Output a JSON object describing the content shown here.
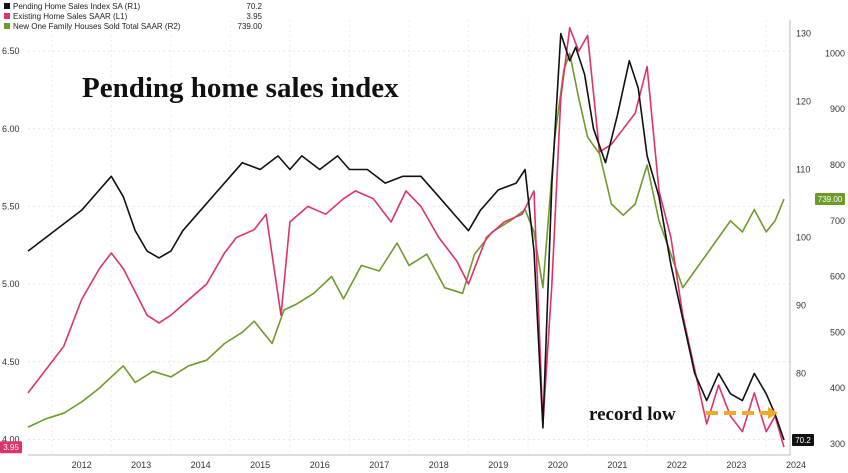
{
  "chart_data": {
    "type": "line",
    "title": "Pending home sales index",
    "annotation": "record low",
    "x_ticks": [
      "2012",
      "2013",
      "2014",
      "2015",
      "2016",
      "2017",
      "2018",
      "2019",
      "2020",
      "2021",
      "2022",
      "2023",
      "2024"
    ],
    "left_axis": {
      "ticks": [
        "6.50",
        "6.00",
        "5.50",
        "5.00",
        "4.50",
        "4.00"
      ],
      "ylim": [
        3.9,
        6.7
      ]
    },
    "right1_axis": {
      "ticks": [
        "130",
        "120",
        "110",
        "100",
        "90",
        "80"
      ],
      "ylim": [
        68,
        132
      ]
    },
    "right2_axis": {
      "ticks": [
        "1000",
        "900",
        "800",
        "700",
        "600",
        "500",
        "400",
        "300"
      ],
      "ylim": [
        280,
        1060
      ]
    },
    "xlim": [
      2011.6,
      2024.4
    ],
    "series": [
      {
        "name": "Pending Home Sales Index SA (R1)",
        "last": "70.2",
        "axis": "right1",
        "color": "#111111",
        "points": [
          [
            2011.6,
            98
          ],
          [
            2011.9,
            100
          ],
          [
            2012.2,
            102
          ],
          [
            2012.5,
            104
          ],
          [
            2012.8,
            107
          ],
          [
            2013.0,
            109
          ],
          [
            2013.2,
            106
          ],
          [
            2013.4,
            101
          ],
          [
            2013.6,
            98
          ],
          [
            2013.8,
            97
          ],
          [
            2014.0,
            98
          ],
          [
            2014.2,
            101
          ],
          [
            2014.5,
            104
          ],
          [
            2014.8,
            107
          ],
          [
            2015.0,
            109
          ],
          [
            2015.2,
            111
          ],
          [
            2015.5,
            110
          ],
          [
            2015.8,
            112
          ],
          [
            2016.0,
            110
          ],
          [
            2016.2,
            112
          ],
          [
            2016.5,
            110
          ],
          [
            2016.8,
            112
          ],
          [
            2017.0,
            110
          ],
          [
            2017.3,
            110
          ],
          [
            2017.6,
            108
          ],
          [
            2017.9,
            109
          ],
          [
            2018.2,
            109
          ],
          [
            2018.5,
            106
          ],
          [
            2018.8,
            103
          ],
          [
            2019.0,
            101
          ],
          [
            2019.2,
            104
          ],
          [
            2019.5,
            107
          ],
          [
            2019.8,
            108
          ],
          [
            2019.95,
            110
          ],
          [
            2020.1,
            98
          ],
          [
            2020.25,
            72
          ],
          [
            2020.4,
            108
          ],
          [
            2020.55,
            130
          ],
          [
            2020.7,
            126
          ],
          [
            2020.8,
            128
          ],
          [
            2020.95,
            124
          ],
          [
            2021.1,
            116
          ],
          [
            2021.3,
            111
          ],
          [
            2021.5,
            118
          ],
          [
            2021.7,
            126
          ],
          [
            2021.85,
            122
          ],
          [
            2022.0,
            112
          ],
          [
            2022.2,
            106
          ],
          [
            2022.4,
            96
          ],
          [
            2022.6,
            88
          ],
          [
            2022.8,
            80
          ],
          [
            2023.0,
            76
          ],
          [
            2023.2,
            80
          ],
          [
            2023.4,
            77
          ],
          [
            2023.6,
            76
          ],
          [
            2023.8,
            80
          ],
          [
            2024.0,
            77
          ],
          [
            2024.15,
            74
          ],
          [
            2024.3,
            70.2
          ]
        ]
      },
      {
        "name": "Existing Home Sales SAAR (L1)",
        "last": "3.95",
        "axis": "left",
        "color": "#e0316b",
        "points": [
          [
            2011.6,
            4.3
          ],
          [
            2011.9,
            4.45
          ],
          [
            2012.2,
            4.6
          ],
          [
            2012.5,
            4.9
          ],
          [
            2012.8,
            5.1
          ],
          [
            2013.0,
            5.2
          ],
          [
            2013.2,
            5.1
          ],
          [
            2013.4,
            4.95
          ],
          [
            2013.6,
            4.8
          ],
          [
            2013.8,
            4.75
          ],
          [
            2014.0,
            4.8
          ],
          [
            2014.3,
            4.9
          ],
          [
            2014.6,
            5.0
          ],
          [
            2014.9,
            5.2
          ],
          [
            2015.1,
            5.3
          ],
          [
            2015.4,
            5.35
          ],
          [
            2015.6,
            5.45
          ],
          [
            2015.85,
            4.8
          ],
          [
            2016.0,
            5.4
          ],
          [
            2016.3,
            5.5
          ],
          [
            2016.6,
            5.45
          ],
          [
            2016.9,
            5.55
          ],
          [
            2017.1,
            5.6
          ],
          [
            2017.4,
            5.55
          ],
          [
            2017.7,
            5.4
          ],
          [
            2017.95,
            5.6
          ],
          [
            2018.2,
            5.5
          ],
          [
            2018.5,
            5.3
          ],
          [
            2018.8,
            5.15
          ],
          [
            2019.0,
            5.0
          ],
          [
            2019.3,
            5.3
          ],
          [
            2019.6,
            5.4
          ],
          [
            2019.9,
            5.45
          ],
          [
            2020.1,
            5.6
          ],
          [
            2020.25,
            4.1
          ],
          [
            2020.4,
            5.0
          ],
          [
            2020.55,
            6.2
          ],
          [
            2020.7,
            6.65
          ],
          [
            2020.85,
            6.5
          ],
          [
            2021.0,
            6.6
          ],
          [
            2021.2,
            5.85
          ],
          [
            2021.4,
            5.9
          ],
          [
            2021.6,
            6.0
          ],
          [
            2021.8,
            6.1
          ],
          [
            2022.0,
            6.4
          ],
          [
            2022.2,
            5.6
          ],
          [
            2022.4,
            5.3
          ],
          [
            2022.6,
            4.8
          ],
          [
            2022.8,
            4.45
          ],
          [
            2023.0,
            4.1
          ],
          [
            2023.2,
            4.35
          ],
          [
            2023.4,
            4.15
          ],
          [
            2023.6,
            4.05
          ],
          [
            2023.8,
            4.3
          ],
          [
            2024.0,
            4.05
          ],
          [
            2024.15,
            4.15
          ],
          [
            2024.3,
            3.95
          ]
        ]
      },
      {
        "name": "New One Family Houses Sold Total SAAR (R2)",
        "last": "739.00",
        "axis": "right2",
        "color": "#6e9a2a",
        "points": [
          [
            2011.6,
            330
          ],
          [
            2011.9,
            345
          ],
          [
            2012.2,
            355
          ],
          [
            2012.5,
            375
          ],
          [
            2012.8,
            400
          ],
          [
            2013.0,
            420
          ],
          [
            2013.2,
            440
          ],
          [
            2013.4,
            410
          ],
          [
            2013.7,
            430
          ],
          [
            2014.0,
            420
          ],
          [
            2014.3,
            440
          ],
          [
            2014.6,
            450
          ],
          [
            2014.9,
            480
          ],
          [
            2015.2,
            500
          ],
          [
            2015.4,
            520
          ],
          [
            2015.7,
            480
          ],
          [
            2015.9,
            540
          ],
          [
            2016.1,
            550
          ],
          [
            2016.4,
            570
          ],
          [
            2016.7,
            600
          ],
          [
            2016.9,
            560
          ],
          [
            2017.2,
            620
          ],
          [
            2017.5,
            610
          ],
          [
            2017.8,
            660
          ],
          [
            2018.0,
            620
          ],
          [
            2018.3,
            640
          ],
          [
            2018.6,
            580
          ],
          [
            2018.9,
            570
          ],
          [
            2019.1,
            640
          ],
          [
            2019.4,
            680
          ],
          [
            2019.7,
            700
          ],
          [
            2019.95,
            720
          ],
          [
            2020.1,
            680
          ],
          [
            2020.25,
            580
          ],
          [
            2020.45,
            850
          ],
          [
            2020.6,
            970
          ],
          [
            2020.7,
            1000
          ],
          [
            2020.85,
            920
          ],
          [
            2021.0,
            850
          ],
          [
            2021.2,
            820
          ],
          [
            2021.4,
            730
          ],
          [
            2021.6,
            710
          ],
          [
            2021.8,
            730
          ],
          [
            2022.0,
            800
          ],
          [
            2022.2,
            700
          ],
          [
            2022.4,
            640
          ],
          [
            2022.6,
            580
          ],
          [
            2022.8,
            610
          ],
          [
            2023.0,
            640
          ],
          [
            2023.2,
            670
          ],
          [
            2023.4,
            700
          ],
          [
            2023.6,
            680
          ],
          [
            2023.8,
            720
          ],
          [
            2024.0,
            680
          ],
          [
            2024.15,
            700
          ],
          [
            2024.3,
            739
          ]
        ]
      }
    ]
  }
}
